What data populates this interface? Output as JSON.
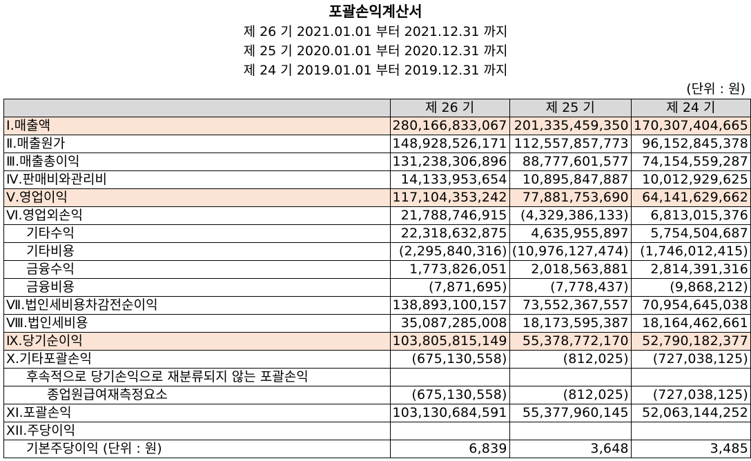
{
  "document": {
    "title": "포괄손익계산서",
    "periods": [
      "제 26 기 2021.01.01 부터 2021.12.31 까지",
      "제 25 기 2020.01.01 부터 2020.12.31 까지",
      "제 24 기 2019.01.01 부터 2019.12.31 까지"
    ],
    "unit": "(단위 : 원)"
  },
  "table": {
    "headers": [
      "",
      "제 26 기",
      "제 25 기",
      "제 24 기"
    ],
    "rows": [
      {
        "label": "Ⅰ.매출액",
        "v": [
          "280,166,833,067",
          "201,335,459,350",
          "170,307,404,665"
        ],
        "hl": true,
        "indent": 0
      },
      {
        "label": "Ⅱ.매출원가",
        "v": [
          "148,928,526,171",
          "112,557,857,773",
          "96,152,845,378"
        ],
        "hl": false,
        "indent": 0
      },
      {
        "label": "Ⅲ.매출총이익",
        "v": [
          "131,238,306,896",
          "88,777,601,577",
          "74,154,559,287"
        ],
        "hl": false,
        "indent": 0
      },
      {
        "label": "Ⅳ.판매비와관리비",
        "v": [
          "14,133,953,654",
          "10,895,847,887",
          "10,012,929,625"
        ],
        "hl": false,
        "indent": 0
      },
      {
        "label": "Ⅴ.영업이익",
        "v": [
          "117,104,353,242",
          "77,881,753,690",
          "64,141,629,662"
        ],
        "hl": true,
        "indent": 0
      },
      {
        "label": "Ⅵ.영업외손익",
        "v": [
          "21,788,746,915",
          "(4,329,386,133)",
          "6,813,015,376"
        ],
        "hl": false,
        "indent": 0
      },
      {
        "label": "기타수익",
        "v": [
          "22,318,632,875",
          "4,635,955,897",
          "5,754,504,687"
        ],
        "hl": false,
        "indent": 1
      },
      {
        "label": "기타비용",
        "v": [
          "(2,295,840,316)",
          "(10,976,127,474)",
          "(1,746,012,415)"
        ],
        "hl": false,
        "indent": 1
      },
      {
        "label": "금융수익",
        "v": [
          "1,773,826,051",
          "2,018,563,881",
          "2,814,391,316"
        ],
        "hl": false,
        "indent": 1
      },
      {
        "label": "금융비용",
        "v": [
          "(7,871,695)",
          "(7,778,437)",
          "(9,868,212)"
        ],
        "hl": false,
        "indent": 1
      },
      {
        "label": "Ⅶ.법인세비용차감전순이익",
        "v": [
          "138,893,100,157",
          "73,552,367,557",
          "70,954,645,038"
        ],
        "hl": false,
        "indent": 0
      },
      {
        "label": "Ⅷ.법인세비용",
        "v": [
          "35,087,285,008",
          "18,173,595,387",
          "18,164,462,661"
        ],
        "hl": false,
        "indent": 0
      },
      {
        "label": "Ⅸ.당기순이익",
        "v": [
          "103,805,815,149",
          "55,378,772,170",
          "52,790,182,377"
        ],
        "hl": true,
        "indent": 0
      },
      {
        "label": "Ⅹ.기타포괄손익",
        "v": [
          "(675,130,558)",
          "(812,025)",
          "(727,038,125)"
        ],
        "hl": false,
        "indent": 0
      },
      {
        "label": "후속적으로 당기손익으로 재분류되지 않는 포괄손익",
        "v": [
          "",
          "",
          ""
        ],
        "hl": false,
        "indent": 1
      },
      {
        "label": "종업원급여재측정요소",
        "v": [
          "(675,130,558)",
          "(812,025)",
          "(727,038,125)"
        ],
        "hl": false,
        "indent": 2
      },
      {
        "label": "XI.포괄손익",
        "v": [
          "103,130,684,591",
          "55,377,960,145",
          "52,063,144,252"
        ],
        "hl": false,
        "indent": 0
      },
      {
        "label": "XII.주당이익",
        "v": [
          "",
          "",
          ""
        ],
        "hl": false,
        "indent": 0
      },
      {
        "label": "기본주당이익 (단위 : 원)",
        "v": [
          "6,839",
          "3,648",
          "3,485"
        ],
        "hl": false,
        "indent": 1
      }
    ]
  }
}
